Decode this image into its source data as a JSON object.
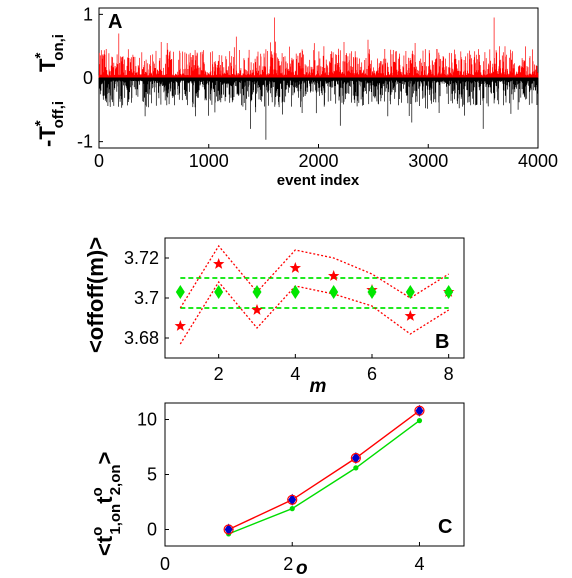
{
  "chart_data": [
    {
      "id": "A",
      "type": "bar",
      "panel_label": "A",
      "xlabel": "event index",
      "ylabel_top": {
        "main": "T",
        "sup": "*",
        "sub": "on,i"
      },
      "ylabel_bottom": {
        "main": "-T",
        "sup": "*",
        "sub": "off,i"
      },
      "xlim": [
        0,
        4000
      ],
      "ylim": [
        -1.1,
        1.1
      ],
      "xticks": [
        "0",
        "1000",
        "2000",
        "3000",
        "4000"
      ],
      "xtick_values": [
        0,
        1000,
        2000,
        3000,
        4000
      ],
      "yticks": [
        "-1",
        "0",
        "1"
      ],
      "ytick_values": [
        -1,
        0,
        1
      ],
      "series": [
        {
          "name": "",
          "color": "#ff0000",
          "sign": 1,
          "n_events": 4000,
          "peaks": [
            [
              1600,
              0.95
            ],
            [
              3600,
              0.95
            ],
            [
              180,
              0.7
            ],
            [
              1250,
              0.65
            ],
            [
              2450,
              0.6
            ],
            [
              2880,
              0.55
            ],
            [
              3700,
              0.5
            ],
            [
              3950,
              0.45
            ],
            [
              620,
              0.55
            ],
            [
              2050,
              0.5
            ]
          ]
        },
        {
          "name": "",
          "color": "#000000",
          "sign": -1,
          "n_events": 4000,
          "peaks": [
            [
              1520,
              0.97
            ],
            [
              1380,
              0.8
            ],
            [
              2200,
              0.75
            ],
            [
              2850,
              0.7
            ],
            [
              3500,
              0.8
            ],
            [
              880,
              0.6
            ],
            [
              420,
              0.6
            ],
            [
              3100,
              0.55
            ],
            [
              2630,
              0.6
            ],
            [
              1850,
              0.55
            ],
            [
              3820,
              0.5
            ]
          ]
        }
      ]
    },
    {
      "id": "B",
      "type": "scatter",
      "panel_label": "B",
      "xlabel": "m",
      "ylabel": "<offoff(m)>",
      "xlim": [
        0.6,
        8.4
      ],
      "ylim": [
        3.67,
        3.73
      ],
      "xticks": [
        "2",
        "4",
        "6",
        "8"
      ],
      "xtick_values": [
        2,
        4,
        6,
        8
      ],
      "yticks": [
        "3.68",
        "3.7",
        "3.72"
      ],
      "ytick_values": [
        3.68,
        3.7,
        3.72
      ],
      "x": [
        1,
        2,
        3,
        4,
        5,
        6,
        7,
        8
      ],
      "series": [
        {
          "name": "",
          "marker": "star",
          "color": "#ff0000",
          "values": [
            3.686,
            3.717,
            3.694,
            3.715,
            3.711,
            3.704,
            3.691,
            3.703
          ]
        },
        {
          "name": "",
          "marker": "diamond",
          "color": "#00e600",
          "values": [
            3.703,
            3.703,
            3.703,
            3.703,
            3.703,
            3.703,
            3.703,
            3.703
          ]
        }
      ],
      "band_upper": [
        3.695,
        3.726,
        3.703,
        3.724,
        3.72,
        3.712,
        3.7,
        3.712
      ],
      "band_lower": [
        3.677,
        3.708,
        3.685,
        3.706,
        3.702,
        3.696,
        3.682,
        3.694
      ],
      "hlines": [
        3.71,
        3.695
      ],
      "hline_color": "#00e600"
    },
    {
      "id": "C",
      "type": "line",
      "panel_label": "C",
      "xlabel": "o",
      "ylabel": {
        "open": "<t",
        "sup1": "o",
        "sub1": "1,on",
        "mid": "t",
        "sup2": "o",
        "sub2": "2,on",
        "close": ">"
      },
      "xlim": [
        0,
        4.7
      ],
      "ylim": [
        -1.5,
        11.5
      ],
      "xticks": [
        "0",
        "2",
        "4"
      ],
      "xtick_values": [
        0,
        2,
        4
      ],
      "yticks": [
        "0",
        "5",
        "10"
      ],
      "ytick_values": [
        0,
        5,
        10
      ],
      "x": [
        1,
        2,
        3,
        4
      ],
      "series": [
        {
          "name": "",
          "color": "#ff0000",
          "values": [
            0.0,
            2.7,
            6.5,
            10.8
          ]
        },
        {
          "name": "",
          "color": "#00dd00",
          "values": [
            -0.4,
            1.9,
            5.6,
            9.9
          ]
        },
        {
          "name": "",
          "color": "#0000cc",
          "marker": "diamond",
          "values": [
            0.0,
            2.7,
            6.5,
            10.8
          ]
        }
      ]
    }
  ]
}
